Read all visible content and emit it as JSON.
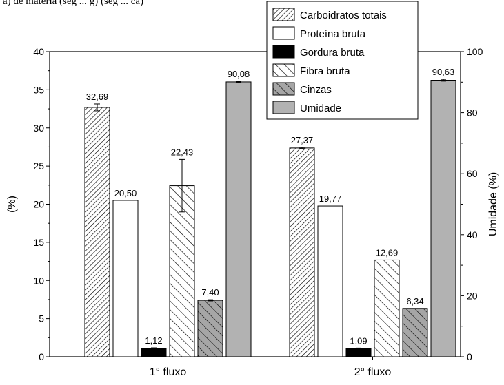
{
  "header_fragment": "a) de matéria (seg ... g) (seg ... ca)",
  "chart_data": {
    "type": "bar",
    "categories": [
      "1° fluxo",
      "2° fluxo"
    ],
    "ylabel": "(%)",
    "y2label": "Umidade (%)",
    "ylim": [
      0,
      40
    ],
    "y2lim": [
      0,
      100
    ],
    "yticks": [
      0,
      5,
      10,
      15,
      20,
      25,
      30,
      35,
      40
    ],
    "y2ticks": [
      0,
      20,
      40,
      60,
      80,
      100
    ],
    "legend_position": "top-right",
    "grid": false,
    "series": [
      {
        "name": "Carboidratos totais",
        "axis": "left",
        "pattern": "hatch-fwd",
        "values": [
          32.69,
          27.37
        ],
        "labels": [
          "32,69",
          "27,37"
        ],
        "errors": [
          0.45,
          0.1
        ]
      },
      {
        "name": "Proteína bruta",
        "axis": "left",
        "pattern": "white",
        "values": [
          20.5,
          19.77
        ],
        "labels": [
          "20,50",
          "19,77"
        ],
        "errors": [
          0,
          0
        ]
      },
      {
        "name": "Gordura bruta",
        "axis": "left",
        "pattern": "black",
        "values": [
          1.12,
          1.09
        ],
        "labels": [
          "1,12",
          "1,09"
        ],
        "errors": [
          0.05,
          0.05
        ]
      },
      {
        "name": "Fibra bruta",
        "axis": "left",
        "pattern": "hatch-back",
        "values": [
          22.43,
          12.69
        ],
        "labels": [
          "22,43",
          "12,69"
        ],
        "errors": [
          3.45,
          0
        ]
      },
      {
        "name": "Cinzas",
        "axis": "left",
        "pattern": "gray-hatch",
        "values": [
          7.4,
          6.34
        ],
        "labels": [
          "7,40",
          "6,34"
        ],
        "errors": [
          0.08,
          0
        ]
      },
      {
        "name": "Umidade",
        "axis": "right",
        "pattern": "gray",
        "values": [
          90.08,
          90.63
        ],
        "labels": [
          "90,08",
          "90,63"
        ],
        "errors": [
          0.2,
          0.3
        ]
      }
    ]
  }
}
